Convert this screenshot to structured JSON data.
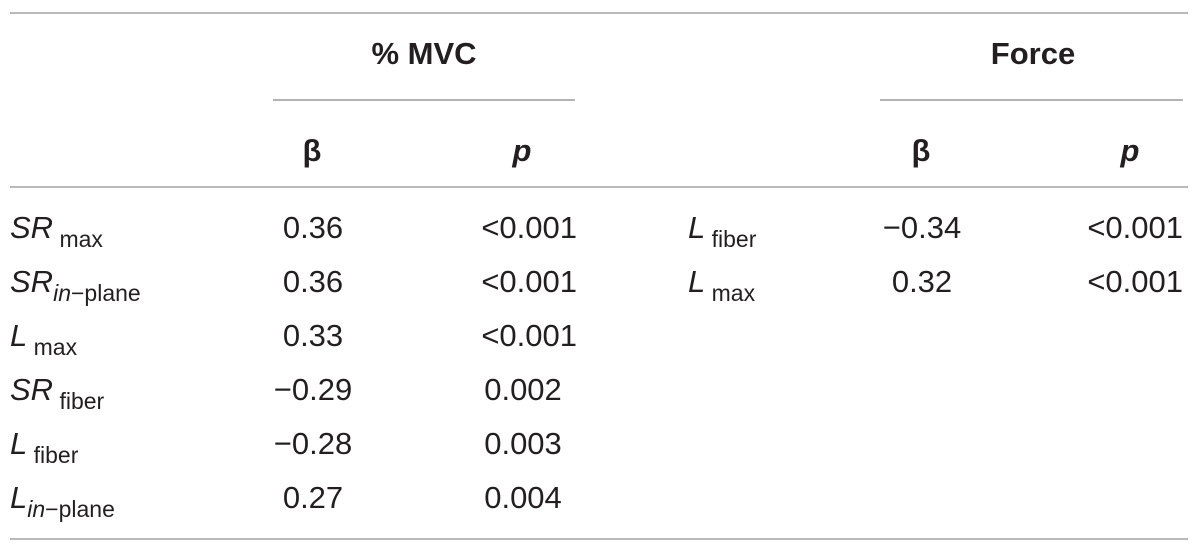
{
  "headers": {
    "group1": "% MVC",
    "group2": "Force",
    "beta": "β",
    "p": "p"
  },
  "mvc_rows": [
    {
      "var": "SR",
      "sub_italic": "",
      "sub": "max",
      "beta": "0.36",
      "p": "<0.001"
    },
    {
      "var": "SR",
      "sub_italic": "in",
      "sub": "−plane",
      "beta": "0.36",
      "p": "<0.001"
    },
    {
      "var": "L",
      "sub_italic": "",
      "sub": "max",
      "beta": "0.33",
      "p": "<0.001"
    },
    {
      "var": "SR",
      "sub_italic": "",
      "sub": "fiber",
      "beta": "−0.29",
      "p": "0.002"
    },
    {
      "var": "L",
      "sub_italic": "",
      "sub": "fiber",
      "beta": "−0.28",
      "p": "0.003"
    },
    {
      "var": "L",
      "sub_italic": "in",
      "sub": "−plane",
      "beta": "0.27",
      "p": "0.004"
    }
  ],
  "force_rows": [
    {
      "var": "L",
      "sub": "fiber",
      "beta": "−0.34",
      "p": "<0.001"
    },
    {
      "var": "L",
      "sub": "max",
      "beta": "0.32",
      "p": "<0.001"
    }
  ]
}
